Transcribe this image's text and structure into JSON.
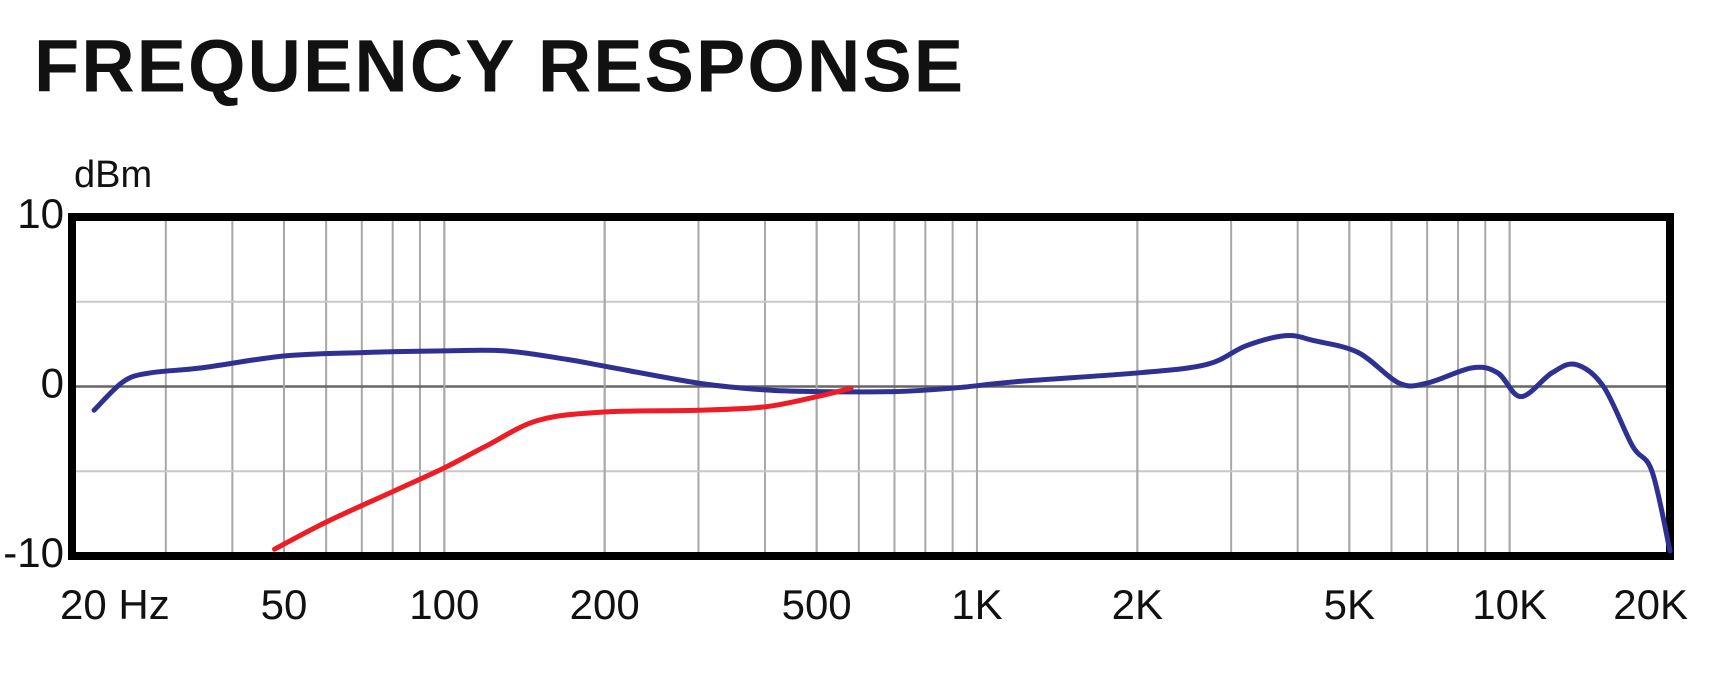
{
  "chart_data": {
    "type": "line",
    "title": "FREQUENCY RESPONSE",
    "y_label": "dBm",
    "log_x": true,
    "grid": true,
    "xlim": [
      20,
      20000
    ],
    "xticks": [
      {
        "value": 20,
        "label": "20 Hz"
      },
      50,
      100,
      200,
      500,
      {
        "value": 1000,
        "label": "1K"
      },
      {
        "value": 2000,
        "label": "2K"
      },
      {
        "value": 5000,
        "label": "5K"
      },
      {
        "value": 10000,
        "label": "10K"
      },
      {
        "value": 20000,
        "label": "20K"
      }
    ],
    "ylim": [
      -10,
      10
    ],
    "yticks": [
      10,
      0,
      -10
    ],
    "series": [
      {
        "color": "#2e3192",
        "x": [
          22,
          25,
          28,
          35,
          50,
          70,
          100,
          130,
          170,
          200,
          300,
          400,
          500,
          700,
          900,
          1200,
          2000,
          2700,
          3200,
          3800,
          4300,
          5200,
          6200,
          7000,
          8500,
          9500,
          10500,
          12000,
          13300,
          15000,
          17000,
          18500,
          20000
        ],
        "values": [
          -1.4,
          0.3,
          0.8,
          1.1,
          1.8,
          2.0,
          2.1,
          2.1,
          1.6,
          1.2,
          0.2,
          -0.2,
          -0.3,
          -0.3,
          -0.1,
          0.3,
          0.8,
          1.3,
          2.4,
          3.0,
          2.7,
          2.0,
          0.2,
          0.2,
          1.1,
          0.8,
          -0.6,
          0.8,
          1.3,
          0,
          -3.5,
          -5,
          -9.7
        ]
      },
      {
        "color": "#ee1c24",
        "x": [
          48,
          60,
          80,
          100,
          120,
          150,
          200,
          300,
          400,
          500,
          580
        ],
        "values": [
          -9.6,
          -8,
          -6.2,
          -4.8,
          -3.5,
          -2,
          -1.5,
          -1.4,
          -1.2,
          -0.6,
          -0.1
        ]
      }
    ]
  }
}
